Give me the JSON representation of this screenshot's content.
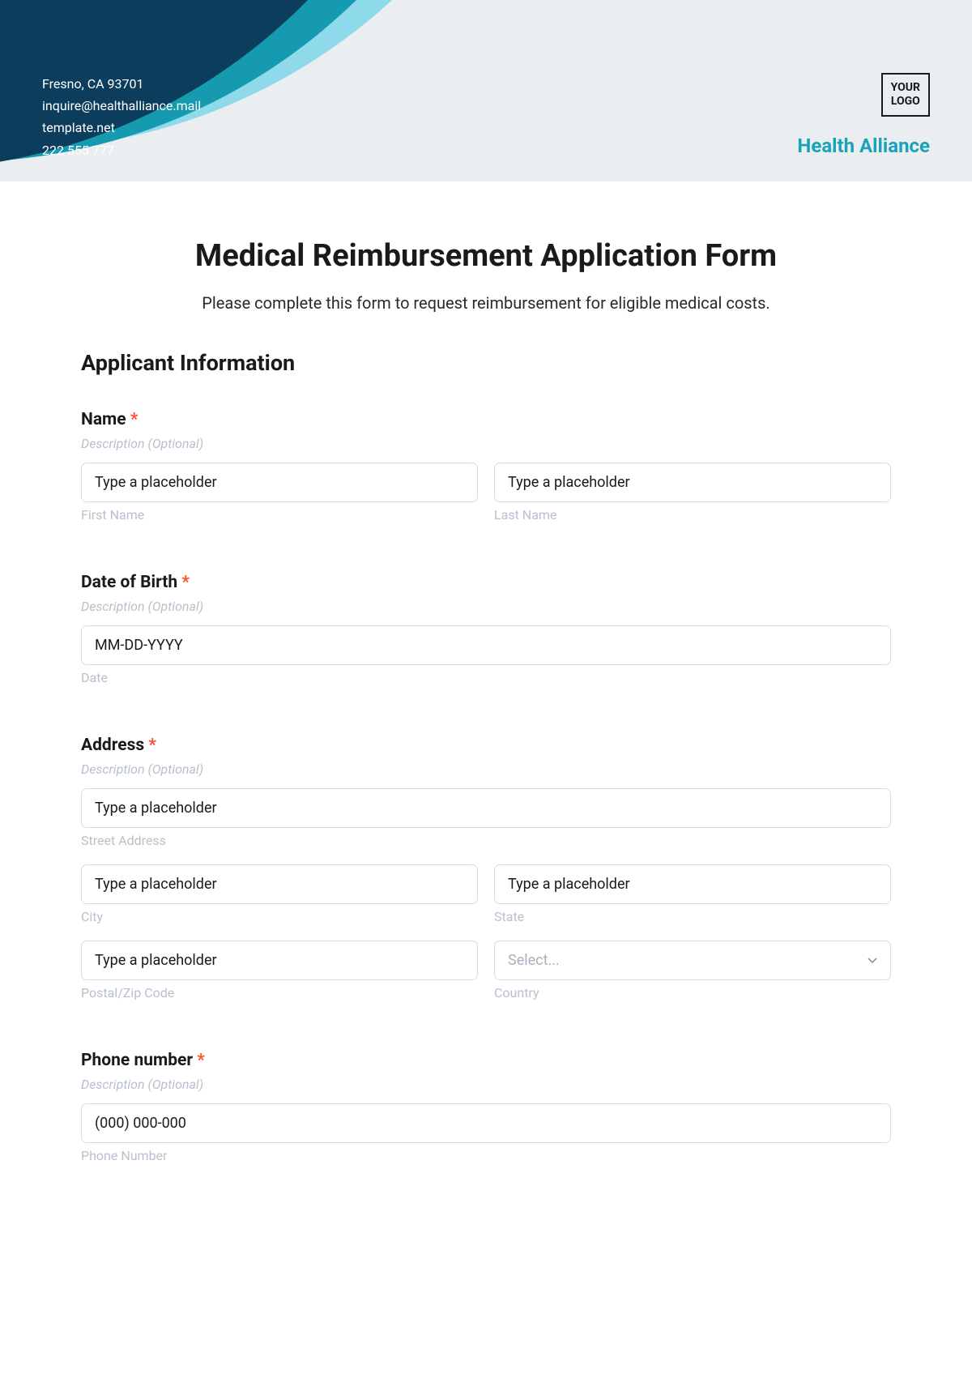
{
  "header": {
    "address": "Fresno, CA 93701",
    "email": "inquire@healthalliance.mail",
    "website": "template.net",
    "phone": "222 555 777",
    "logo_line1": "YOUR",
    "logo_line2": "LOGO",
    "company": "Health Alliance",
    "colors": {
      "bg": "#eaeef0",
      "swoosh_dark": "#0c3d5c",
      "swoosh_mid": "#169ab0",
      "swoosh_light": "#8ed9ea",
      "brand": "#1aa3b8"
    }
  },
  "form": {
    "title": "Medical Reimbursement Application Form",
    "subtitle": "Please complete this form to request reimbursement for eligible medical costs.",
    "section1": "Applicant Information",
    "required_mark": "*",
    "desc_placeholder": "Description (Optional)",
    "input_placeholder": "Type a placeholder",
    "name": {
      "label": "Name",
      "first_sub": "First Name",
      "last_sub": "Last Name"
    },
    "dob": {
      "label": "Date of Birth",
      "placeholder": "MM-DD-YYYY",
      "sub": "Date"
    },
    "address": {
      "label": "Address",
      "street_sub": "Street Address",
      "city_sub": "City",
      "state_sub": "State",
      "postal_sub": "Postal/Zip Code",
      "country_sub": "Country",
      "country_placeholder": "Select..."
    },
    "phone": {
      "label": "Phone number",
      "placeholder": "(000) 000-000",
      "sub": "Phone Number"
    }
  }
}
